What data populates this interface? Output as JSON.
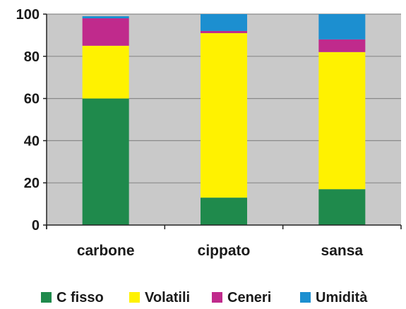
{
  "chart_data": {
    "type": "bar",
    "stacked": true,
    "categories": [
      "carbone",
      "cippato",
      "sansa"
    ],
    "series": [
      {
        "name": "C fisso",
        "color": "#1f8a4c",
        "values": [
          60,
          13,
          17
        ]
      },
      {
        "name": "Volatili",
        "color": "#fff200",
        "values": [
          25,
          78,
          65
        ]
      },
      {
        "name": "Ceneri",
        "color": "#c02a8c",
        "values": [
          13,
          1,
          6
        ]
      },
      {
        "name": "Umidità",
        "color": "#1c8fd0",
        "values": [
          1,
          8,
          12
        ]
      }
    ],
    "ylim": [
      0,
      100
    ],
    "yticks": [
      0,
      20,
      40,
      60,
      80,
      100
    ],
    "grid": true,
    "legend": "bottom",
    "plot_background": "#c9c9c9"
  }
}
